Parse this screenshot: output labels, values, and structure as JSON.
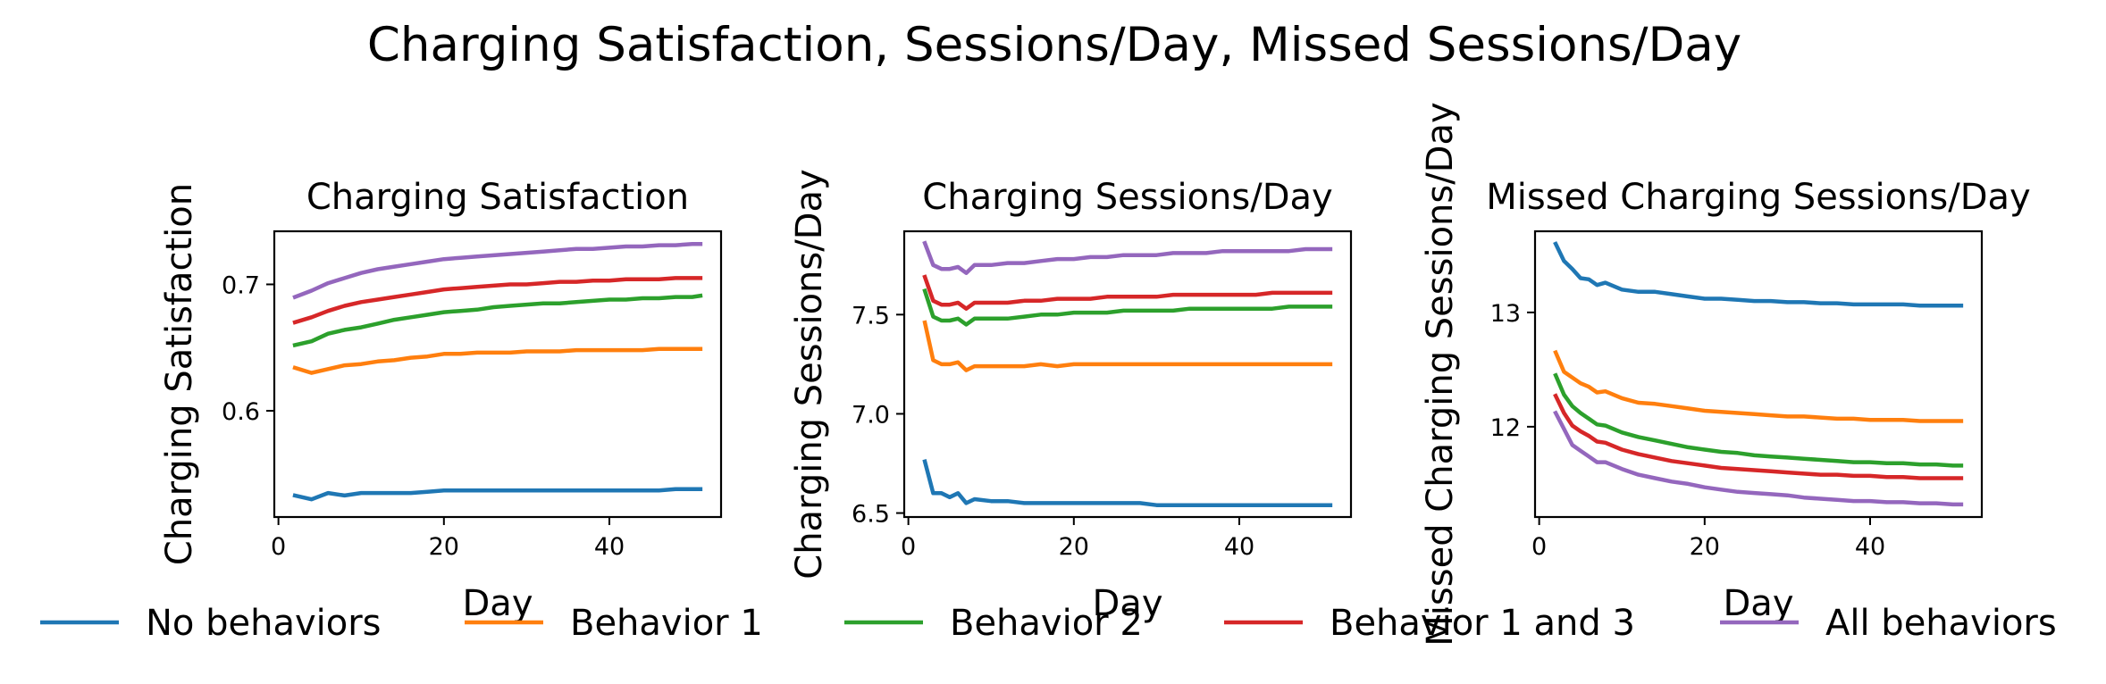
{
  "suptitle": "Charging Satisfaction, Sessions/Day, Missed Sessions/Day",
  "colors": {
    "No behaviors": "#1f77b4",
    "Behavior 1": "#ff7f0e",
    "Behavior 2": "#2ca02c",
    "Behavior 1 and 3": "#d62728",
    "All behaviors": "#9467bd"
  },
  "legend": {
    "placement": "bottom, single row",
    "items": [
      "No behaviors",
      "Behavior 1",
      "Behavior 2",
      "Behavior 1 and 3",
      "All behaviors"
    ]
  },
  "chart_data": [
    {
      "type": "line",
      "title": "Charging Satisfaction",
      "xlabel": "Day",
      "ylabel": "Charging Satisfaction",
      "xlim": [
        -0.5,
        53.5
      ],
      "ylim": [
        0.516,
        0.742
      ],
      "xticks": [
        0,
        20,
        40
      ],
      "yticks": [
        0.6,
        0.7
      ],
      "ytick_labels": [
        "0.6",
        "0.7"
      ],
      "x": [
        2,
        4,
        6,
        8,
        10,
        12,
        14,
        16,
        18,
        20,
        22,
        24,
        26,
        28,
        30,
        32,
        34,
        36,
        38,
        40,
        42,
        44,
        46,
        48,
        50,
        51
      ],
      "series": [
        {
          "name": "No behaviors",
          "values": [
            0.533,
            0.53,
            0.535,
            0.533,
            0.535,
            0.535,
            0.535,
            0.535,
            0.536,
            0.537,
            0.537,
            0.537,
            0.537,
            0.537,
            0.537,
            0.537,
            0.537,
            0.537,
            0.537,
            0.537,
            0.537,
            0.537,
            0.537,
            0.538,
            0.538,
            0.538
          ]
        },
        {
          "name": "Behavior 1",
          "values": [
            0.634,
            0.63,
            0.633,
            0.636,
            0.637,
            0.639,
            0.64,
            0.642,
            0.643,
            0.645,
            0.645,
            0.646,
            0.646,
            0.646,
            0.647,
            0.647,
            0.647,
            0.648,
            0.648,
            0.648,
            0.648,
            0.648,
            0.649,
            0.649,
            0.649,
            0.649
          ]
        },
        {
          "name": "Behavior 2",
          "values": [
            0.652,
            0.655,
            0.661,
            0.664,
            0.666,
            0.669,
            0.672,
            0.674,
            0.676,
            0.678,
            0.679,
            0.68,
            0.682,
            0.683,
            0.684,
            0.685,
            0.685,
            0.686,
            0.687,
            0.688,
            0.688,
            0.689,
            0.689,
            0.69,
            0.69,
            0.691
          ]
        },
        {
          "name": "Behavior 1 and 3",
          "values": [
            0.67,
            0.674,
            0.679,
            0.683,
            0.686,
            0.688,
            0.69,
            0.692,
            0.694,
            0.696,
            0.697,
            0.698,
            0.699,
            0.7,
            0.7,
            0.701,
            0.702,
            0.702,
            0.703,
            0.703,
            0.704,
            0.704,
            0.704,
            0.705,
            0.705,
            0.705
          ]
        },
        {
          "name": "All behaviors",
          "values": [
            0.69,
            0.695,
            0.701,
            0.705,
            0.709,
            0.712,
            0.714,
            0.716,
            0.718,
            0.72,
            0.721,
            0.722,
            0.723,
            0.724,
            0.725,
            0.726,
            0.727,
            0.728,
            0.728,
            0.729,
            0.73,
            0.73,
            0.731,
            0.731,
            0.732,
            0.732
          ]
        }
      ]
    },
    {
      "type": "line",
      "title": "Charging Sessions/Day",
      "xlabel": "Day",
      "ylabel": "Charging Sessions/Day",
      "xlim": [
        -0.5,
        53.5
      ],
      "ylim": [
        6.48,
        7.92
      ],
      "xticks": [
        0,
        20,
        40
      ],
      "yticks": [
        6.5,
        7.0,
        7.5
      ],
      "ytick_labels": [
        "6.5",
        "7.0",
        "7.5"
      ],
      "x": [
        2,
        3,
        4,
        5,
        6,
        7,
        8,
        10,
        12,
        14,
        16,
        18,
        20,
        22,
        24,
        26,
        28,
        30,
        32,
        34,
        36,
        38,
        40,
        42,
        44,
        46,
        48,
        50,
        51
      ],
      "series": [
        {
          "name": "No behaviors",
          "values": [
            6.76,
            6.6,
            6.6,
            6.58,
            6.6,
            6.55,
            6.57,
            6.56,
            6.56,
            6.55,
            6.55,
            6.55,
            6.55,
            6.55,
            6.55,
            6.55,
            6.55,
            6.54,
            6.54,
            6.54,
            6.54,
            6.54,
            6.54,
            6.54,
            6.54,
            6.54,
            6.54,
            6.54,
            6.54
          ]
        },
        {
          "name": "Behavior 1",
          "values": [
            7.46,
            7.27,
            7.25,
            7.25,
            7.26,
            7.22,
            7.24,
            7.24,
            7.24,
            7.24,
            7.25,
            7.24,
            7.25,
            7.25,
            7.25,
            7.25,
            7.25,
            7.25,
            7.25,
            7.25,
            7.25,
            7.25,
            7.25,
            7.25,
            7.25,
            7.25,
            7.25,
            7.25,
            7.25
          ]
        },
        {
          "name": "Behavior 2",
          "values": [
            7.62,
            7.49,
            7.47,
            7.47,
            7.48,
            7.45,
            7.48,
            7.48,
            7.48,
            7.49,
            7.5,
            7.5,
            7.51,
            7.51,
            7.51,
            7.52,
            7.52,
            7.52,
            7.52,
            7.53,
            7.53,
            7.53,
            7.53,
            7.53,
            7.53,
            7.54,
            7.54,
            7.54,
            7.54
          ]
        },
        {
          "name": "Behavior 1 and 3",
          "values": [
            7.69,
            7.57,
            7.55,
            7.55,
            7.56,
            7.53,
            7.56,
            7.56,
            7.56,
            7.57,
            7.57,
            7.58,
            7.58,
            7.58,
            7.59,
            7.59,
            7.59,
            7.59,
            7.6,
            7.6,
            7.6,
            7.6,
            7.6,
            7.6,
            7.61,
            7.61,
            7.61,
            7.61,
            7.61
          ]
        },
        {
          "name": "All behaviors",
          "values": [
            7.86,
            7.75,
            7.73,
            7.73,
            7.74,
            7.71,
            7.75,
            7.75,
            7.76,
            7.76,
            7.77,
            7.78,
            7.78,
            7.79,
            7.79,
            7.8,
            7.8,
            7.8,
            7.81,
            7.81,
            7.81,
            7.82,
            7.82,
            7.82,
            7.82,
            7.82,
            7.83,
            7.83,
            7.83
          ]
        }
      ]
    },
    {
      "type": "line",
      "title": "Missed Charging Sessions/Day",
      "xlabel": "Day",
      "ylabel": "Missed Charging Sessions/Day",
      "xlim": [
        -0.5,
        53.5
      ],
      "ylim": [
        11.21,
        13.71
      ],
      "xticks": [
        0,
        20,
        40
      ],
      "yticks": [
        12,
        13
      ],
      "ytick_labels": [
        "12",
        "13"
      ],
      "x": [
        2,
        3,
        4,
        5,
        6,
        7,
        8,
        10,
        12,
        14,
        16,
        18,
        20,
        22,
        24,
        26,
        28,
        30,
        32,
        34,
        36,
        38,
        40,
        42,
        44,
        46,
        48,
        50,
        51
      ],
      "series": [
        {
          "name": "No behaviors",
          "values": [
            13.6,
            13.45,
            13.38,
            13.3,
            13.29,
            13.24,
            13.26,
            13.2,
            13.18,
            13.18,
            13.16,
            13.14,
            13.12,
            13.12,
            13.11,
            13.1,
            13.1,
            13.09,
            13.09,
            13.08,
            13.08,
            13.07,
            13.07,
            13.07,
            13.07,
            13.06,
            13.06,
            13.06,
            13.06
          ]
        },
        {
          "name": "Behavior 1",
          "values": [
            12.65,
            12.48,
            12.43,
            12.38,
            12.35,
            12.3,
            12.31,
            12.25,
            12.21,
            12.2,
            12.18,
            12.16,
            12.14,
            12.13,
            12.12,
            12.11,
            12.1,
            12.09,
            12.09,
            12.08,
            12.07,
            12.07,
            12.06,
            12.06,
            12.06,
            12.05,
            12.05,
            12.05,
            12.05
          ]
        },
        {
          "name": "Behavior 2",
          "values": [
            12.45,
            12.28,
            12.18,
            12.12,
            12.07,
            12.02,
            12.01,
            11.95,
            11.91,
            11.88,
            11.85,
            11.82,
            11.8,
            11.78,
            11.77,
            11.75,
            11.74,
            11.73,
            11.72,
            11.71,
            11.7,
            11.69,
            11.69,
            11.68,
            11.68,
            11.67,
            11.67,
            11.66,
            11.66
          ]
        },
        {
          "name": "Behavior 1 and 3",
          "values": [
            12.27,
            12.12,
            12.01,
            11.96,
            11.92,
            11.87,
            11.86,
            11.8,
            11.76,
            11.73,
            11.7,
            11.68,
            11.66,
            11.64,
            11.63,
            11.62,
            11.61,
            11.6,
            11.59,
            11.58,
            11.58,
            11.57,
            11.57,
            11.56,
            11.56,
            11.55,
            11.55,
            11.55,
            11.55
          ]
        },
        {
          "name": "All behaviors",
          "values": [
            12.12,
            11.98,
            11.84,
            11.79,
            11.74,
            11.69,
            11.69,
            11.63,
            11.58,
            11.55,
            11.52,
            11.5,
            11.47,
            11.45,
            11.43,
            11.42,
            11.41,
            11.4,
            11.38,
            11.37,
            11.36,
            11.35,
            11.35,
            11.34,
            11.34,
            11.33,
            11.33,
            11.32,
            11.32
          ]
        }
      ]
    }
  ]
}
